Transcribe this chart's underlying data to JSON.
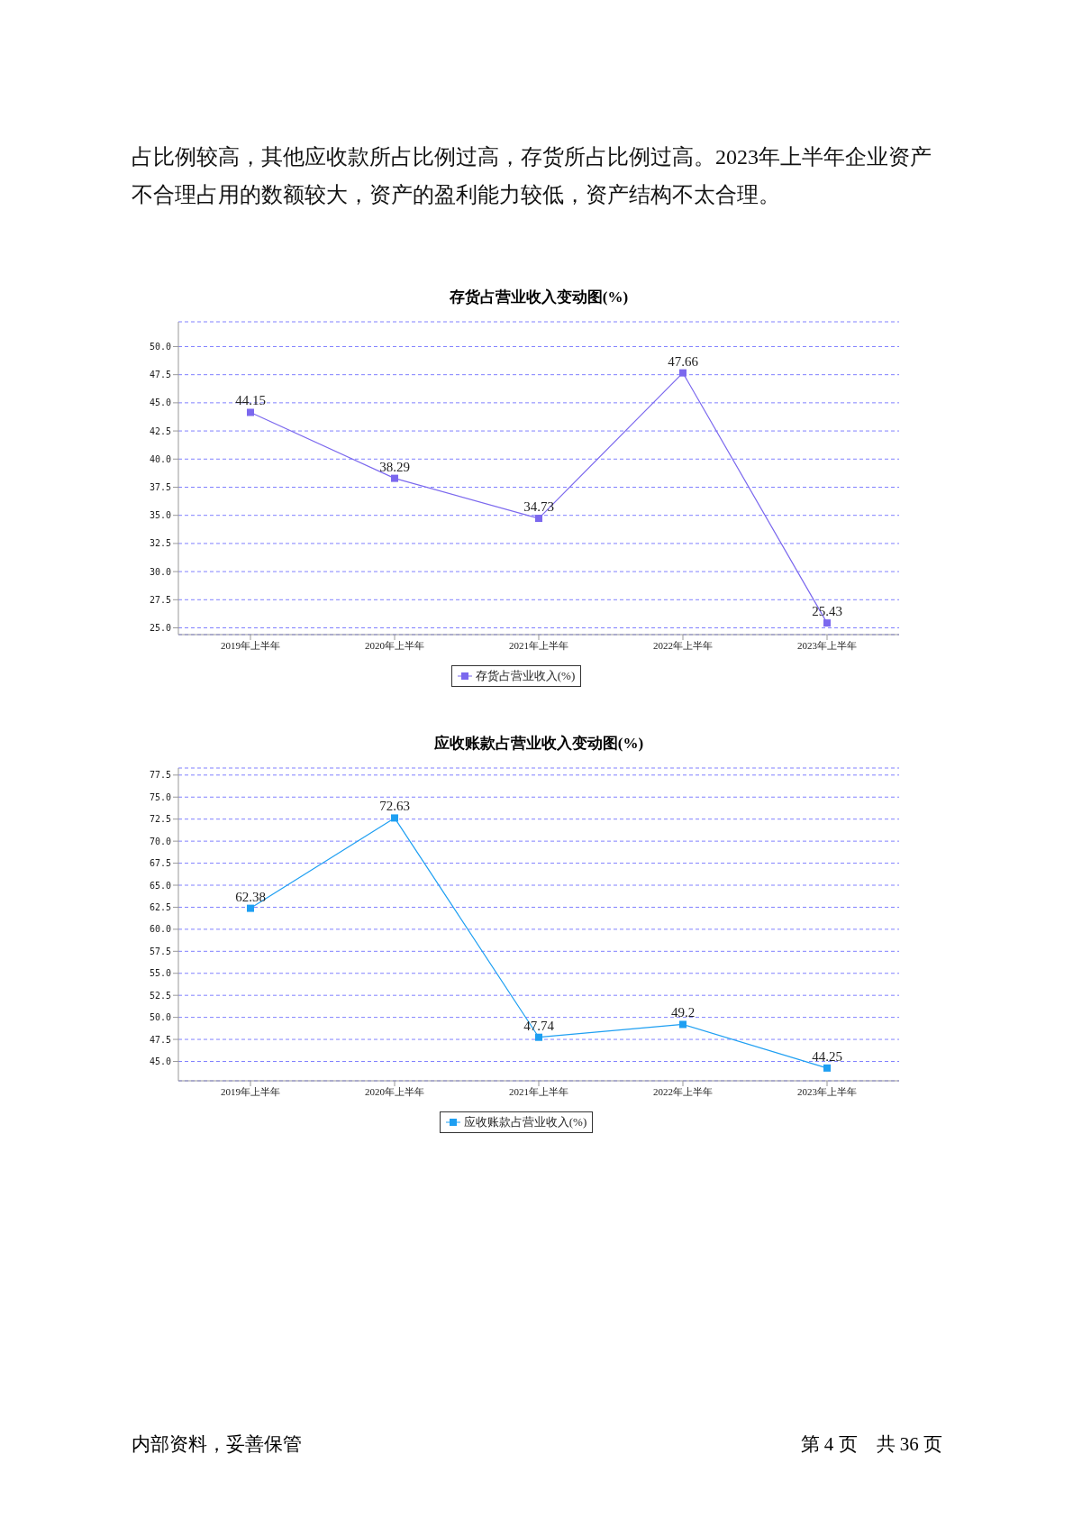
{
  "chart_data": [
    {
      "type": "line",
      "title": "存货占营业收入变动图(%)",
      "categories": [
        "2019年上半年",
        "2020年上半年",
        "2021年上半年",
        "2022年上半年",
        "2023年上半年"
      ],
      "series": [
        {
          "name": "存货占营业收入(%)",
          "color": "#7b68ee",
          "values": [
            44.15,
            38.29,
            34.73,
            47.66,
            25.43
          ]
        }
      ],
      "ylim": [
        24.4,
        52.2
      ],
      "yticks": [
        {
          "value": 25,
          "label": "25.0"
        },
        {
          "value": 27.5,
          "label": "27.5"
        },
        {
          "value": 30,
          "label": "30.0"
        },
        {
          "value": 32.5,
          "label": "32.5"
        },
        {
          "value": 35,
          "label": "35.0"
        },
        {
          "value": 37.5,
          "label": "37.5"
        },
        {
          "value": 40,
          "label": "40.0"
        },
        {
          "value": 42.5,
          "label": "42.5"
        },
        {
          "value": 45,
          "label": "45.0"
        },
        {
          "value": 47.5,
          "label": "47.5"
        },
        {
          "value": 50,
          "label": "50.0"
        }
      ],
      "grid": "y",
      "legend": "bottom",
      "marker": "square",
      "data_labels": true,
      "annotations": [
        "占比例较高，其他应收款所占比例过高，存货所占比例过高。2023年上半年企业资产不合理占用的数额较大，资产的盈利能力较低，资产结构不太合理。"
      ]
    },
    {
      "type": "line",
      "title": "应收账款占营业收入变动图(%)",
      "categories": [
        "2019年上半年",
        "2020年上半年",
        "2021年上半年",
        "2022年上半年",
        "2023年上半年"
      ],
      "series": [
        {
          "name": "应收账款占营业收入(%)",
          "color": "#1e9ff2",
          "values": [
            62.38,
            72.63,
            47.74,
            49.2,
            44.25
          ]
        }
      ],
      "ylim": [
        42.8,
        78.3
      ],
      "yticks": [
        {
          "value": 45,
          "label": "45.0"
        },
        {
          "value": 47.5,
          "label": "47.5"
        },
        {
          "value": 50,
          "label": "50.0"
        },
        {
          "value": 52.5,
          "label": "52.5"
        },
        {
          "value": 55,
          "label": "55.0"
        },
        {
          "value": 57.5,
          "label": "57.5"
        },
        {
          "value": 60,
          "label": "60.0"
        },
        {
          "value": 62.5,
          "label": "62.5"
        },
        {
          "value": 65,
          "label": "65.0"
        },
        {
          "value": 67.5,
          "label": "67.5"
        },
        {
          "value": 70,
          "label": "70.0"
        },
        {
          "value": 72.5,
          "label": "72.5"
        },
        {
          "value": 75,
          "label": "75.0"
        },
        {
          "value": 77.5,
          "label": "77.5"
        }
      ],
      "grid": "y",
      "legend": "bottom",
      "marker": "square",
      "data_labels": true,
      "annotations": [
        "内部资料，妥善保管",
        "第 4 页　共 36 页"
      ]
    }
  ]
}
